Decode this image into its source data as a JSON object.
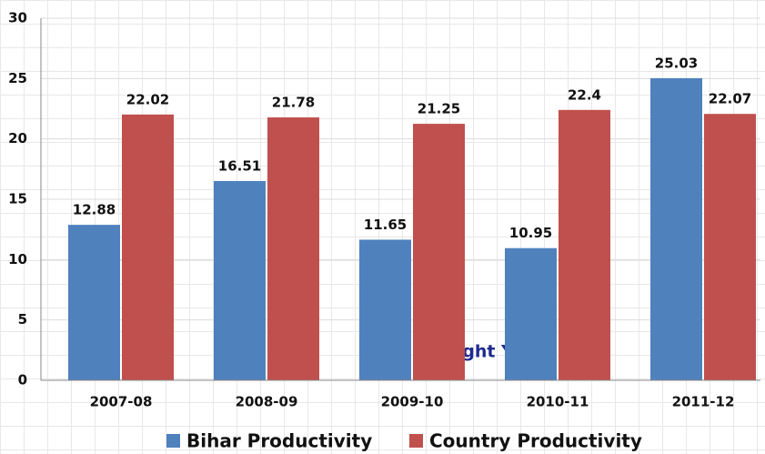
{
  "chart_data": {
    "type": "bar",
    "categories": [
      "2007-08",
      "2008-09",
      "2009-10",
      "2010-11",
      "2011-12"
    ],
    "series": [
      {
        "name": "Bihar Productivity",
        "color": "#4f81bd",
        "values": [
          12.88,
          16.51,
          11.65,
          10.95,
          25.03
        ]
      },
      {
        "name": "Country Productivity",
        "color": "#c0504d",
        "values": [
          22.02,
          21.78,
          21.25,
          22.4,
          22.07
        ]
      }
    ],
    "ylim": [
      0,
      30
    ],
    "yticks": [
      0,
      5,
      10,
      15,
      20,
      25,
      30
    ],
    "grid": true,
    "annotation": "Drought Years",
    "legend": "bottom"
  }
}
